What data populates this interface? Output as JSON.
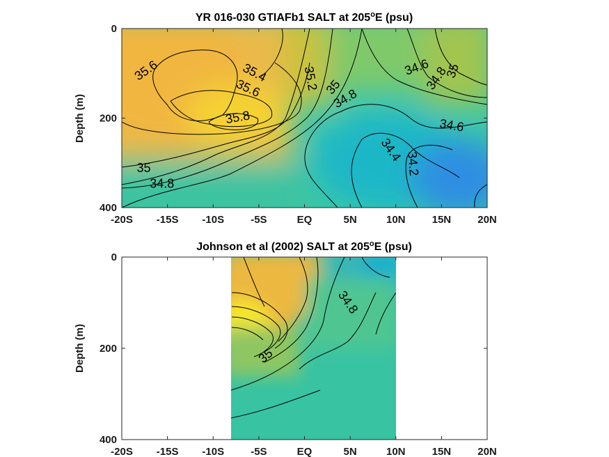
{
  "chart_data": [
    {
      "type": "heatmap",
      "title": "YR 016-030 GTIAFb1 SALT at 205",
      "title_sup": "o",
      "title_tail": "E (psu)",
      "ylabel": "Depth (m)",
      "xlim": [
        -20,
        20
      ],
      "ylim": [
        0,
        400
      ],
      "y_reversed": true,
      "x_ticks": [
        -20,
        -15,
        -10,
        -5,
        0,
        5,
        10,
        15,
        20
      ],
      "x_tick_labels": [
        "-20S",
        "-15S",
        "-10S",
        "-5S",
        "EQ",
        "5N",
        "10N",
        "15N",
        "20N"
      ],
      "y_ticks": [
        0,
        200,
        400
      ],
      "y_tick_labels": [
        "0",
        "200",
        "400"
      ],
      "contour_labels": [
        {
          "text": "35.6",
          "lat": -17.3,
          "depth": 95,
          "rot": -35
        },
        {
          "text": "35.4",
          "lat": -5.5,
          "depth": 100,
          "rot": 28
        },
        {
          "text": "35.6",
          "lat": -6.2,
          "depth": 135,
          "rot": 25
        },
        {
          "text": "35.8",
          "lat": -7.3,
          "depth": 200,
          "rot": -10
        },
        {
          "text": "35.2",
          "lat": 0.6,
          "depth": 112,
          "rot": 80
        },
        {
          "text": "35",
          "lat": 3.2,
          "depth": 132,
          "rot": -50
        },
        {
          "text": "34.8",
          "lat": 4.5,
          "depth": 158,
          "rot": -30
        },
        {
          "text": "34.6",
          "lat": 12.3,
          "depth": 88,
          "rot": -20
        },
        {
          "text": "34.8",
          "lat": 14.5,
          "depth": 112,
          "rot": -55
        },
        {
          "text": "35",
          "lat": 16.3,
          "depth": 95,
          "rot": -70
        },
        {
          "text": "34.6",
          "lat": 16.1,
          "depth": 218,
          "rot": 10
        },
        {
          "text": "34.4",
          "lat": 9.4,
          "depth": 272,
          "rot": 55
        },
        {
          "text": "34.2",
          "lat": 11.8,
          "depth": 302,
          "rot": 85
        },
        {
          "text": "35",
          "lat": -17.6,
          "depth": 313,
          "rot": 0
        },
        {
          "text": "34.8",
          "lat": -15.6,
          "depth": 348,
          "rot": 0
        }
      ]
    },
    {
      "type": "heatmap",
      "title": "Johnson et al (2002) SALT at 205",
      "title_sup": "o",
      "title_tail": "E (psu)",
      "ylabel": "Depth (m)",
      "xlim": [
        -20,
        20
      ],
      "ylim": [
        0,
        400
      ],
      "y_reversed": true,
      "data_lat_range": [
        -8,
        10
      ],
      "x_ticks": [
        -20,
        -15,
        -10,
        -5,
        0,
        5,
        10,
        15,
        20
      ],
      "x_tick_labels": [
        "-20S",
        "-15S",
        "-10S",
        "-5S",
        "EQ",
        "5N",
        "10N",
        "15N",
        "20N"
      ],
      "y_ticks": [
        0,
        200,
        400
      ],
      "y_tick_labels": [
        "0",
        "200",
        "400"
      ],
      "contour_labels": [
        {
          "text": "34.8",
          "lat": 4.7,
          "depth": 100,
          "rot": 55
        },
        {
          "text": "35",
          "lat": -4.2,
          "depth": 218,
          "rot": -40
        }
      ]
    }
  ]
}
